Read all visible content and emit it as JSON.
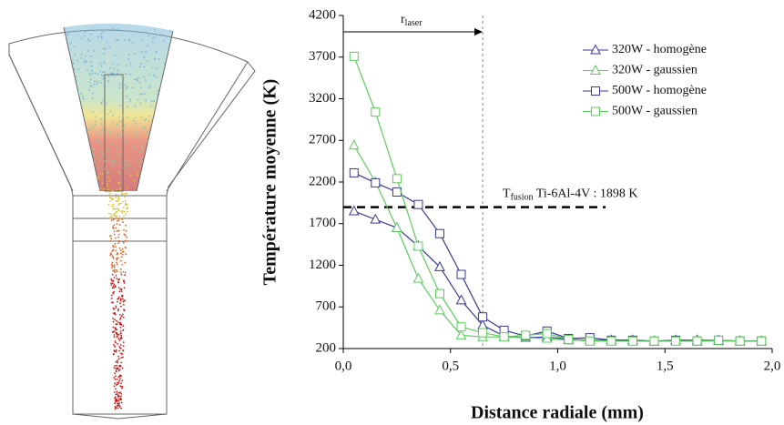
{
  "chart_data": {
    "type": "line",
    "x_label": "Distance radiale (mm)",
    "y_label": "Température moyenne (K)",
    "xlim": [
      0,
      2.0
    ],
    "ylim": [
      200,
      4200
    ],
    "xticks": [
      {
        "value": 0,
        "label": "0,0"
      },
      {
        "value": 0.5,
        "label": "0,5"
      },
      {
        "value": 1.0,
        "label": "1,0"
      },
      {
        "value": 1.5,
        "label": "1,5"
      },
      {
        "value": 2.0,
        "label": "2,0"
      }
    ],
    "yticks": [
      200,
      700,
      1200,
      1700,
      2200,
      2700,
      3200,
      3700,
      4200
    ],
    "x": [
      0.05,
      0.15,
      0.25,
      0.35,
      0.45,
      0.55,
      0.65,
      0.75,
      0.85,
      0.95,
      1.05,
      1.15,
      1.25,
      1.35,
      1.45,
      1.55,
      1.65,
      1.75,
      1.85,
      1.95
    ],
    "series": [
      {
        "name": "320W - homogène",
        "color": "#3a3a98",
        "marker": "triangle",
        "values": [
          1850,
          1750,
          1650,
          1430,
          1180,
          780,
          480,
          350,
          330,
          340,
          310,
          300,
          300,
          300,
          290,
          300,
          300,
          300,
          290,
          290
        ]
      },
      {
        "name": "320W - gaussien",
        "color": "#5ccc5c",
        "marker": "triangle",
        "values": [
          2640,
          2200,
          1650,
          1040,
          660,
          360,
          340,
          340,
          330,
          320,
          300,
          300,
          290,
          290,
          290,
          290,
          290,
          290,
          290,
          290
        ]
      },
      {
        "name": "500W - homogène",
        "color": "#3a3a98",
        "marker": "square",
        "values": [
          2310,
          2190,
          2080,
          1930,
          1580,
          1090,
          580,
          420,
          350,
          410,
          320,
          330,
          300,
          300,
          290,
          300,
          290,
          300,
          290,
          290
        ]
      },
      {
        "name": "500W - gaussien",
        "color": "#5ccc5c",
        "marker": "square",
        "values": [
          3710,
          3040,
          2240,
          1430,
          860,
          460,
          390,
          340,
          360,
          380,
          310,
          290,
          290,
          290,
          290,
          290,
          290,
          300,
          290,
          290
        ]
      }
    ],
    "r_laser": {
      "text": "r",
      "sub": "laser",
      "x": 0.65
    },
    "fusion": {
      "text": "T",
      "sub": "fusion",
      "rest": " Ti-6Al-4V : 1898 K",
      "value": 1898
    }
  }
}
